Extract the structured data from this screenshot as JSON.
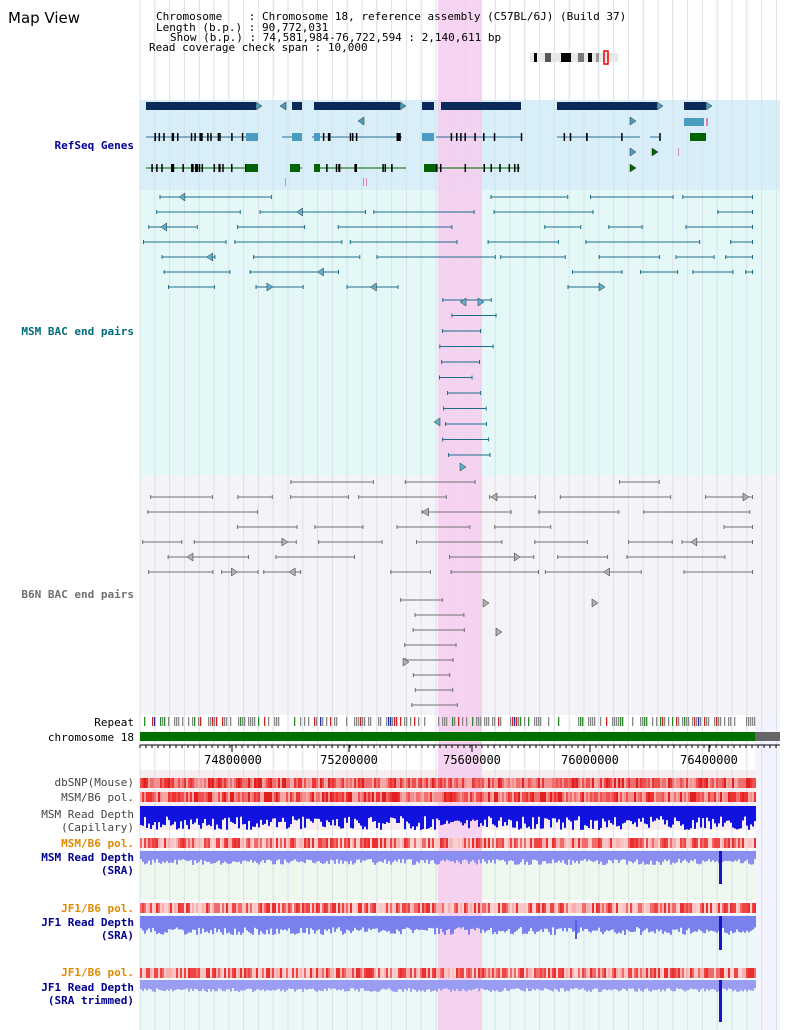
{
  "title": "Map View",
  "header": {
    "chromosome_key": "Chromosome",
    "chromosome_value": "Chromosome 18, reference assembly (C57BL/6J) (Build 37)",
    "length_key": "Length (b.p.)",
    "length_value": "90,772,031",
    "show_key": "Show (b.p.)",
    "show_value": "74,581,984-76,722,594 : 2,140,611 bp",
    "span_key": "Read coverage check span",
    "span_value": "10,000"
  },
  "tracks": {
    "refseq": "RefSeq Genes",
    "msm_bac": "MSM BAC end pairs",
    "b6n_bac": "B6N BAC end pairs",
    "repeat": "Repeat",
    "chromosome": "chromosome 18",
    "dbsnp": "dbSNP(Mouse)",
    "msm_b6_pol": "MSM/B6 pol.",
    "msm_depth_cap_1": "MSM Read Depth",
    "msm_depth_cap_2": "(Capillary)",
    "msm_b6_pol_2": "MSM/B6 pol.",
    "msm_depth_sra_1": "MSM Read Depth",
    "msm_depth_sra_2": "(SRA)",
    "jf1_b6_pol": "JF1/B6 pol.",
    "jf1_depth_sra_1": "JF1 Read Depth",
    "jf1_depth_sra_2": "(SRA)",
    "jf1_b6_pol_2": "JF1/B6 pol.",
    "jf1_depth_trim_1": "JF1 Read Depth",
    "jf1_depth_trim_2": "(SRA trimmed)"
  },
  "axis": {
    "ticks": [
      "74800000",
      "75200000",
      "75600000",
      "76000000",
      "76400000"
    ]
  },
  "colors": {
    "gene_dark": "#0b2a5a",
    "gene_mid": "#4a9cc0",
    "gene_green": "#006400",
    "msm_bac": "#1e6e8a",
    "b6n_bac": "#707070",
    "highlight": "#f6cdee",
    "depth_blue": "#1010e0",
    "depth_light": "#8a8ef0",
    "label_msm": "#006b7b",
    "label_blue": "#000090",
    "label_orange": "#e08a00"
  }
}
